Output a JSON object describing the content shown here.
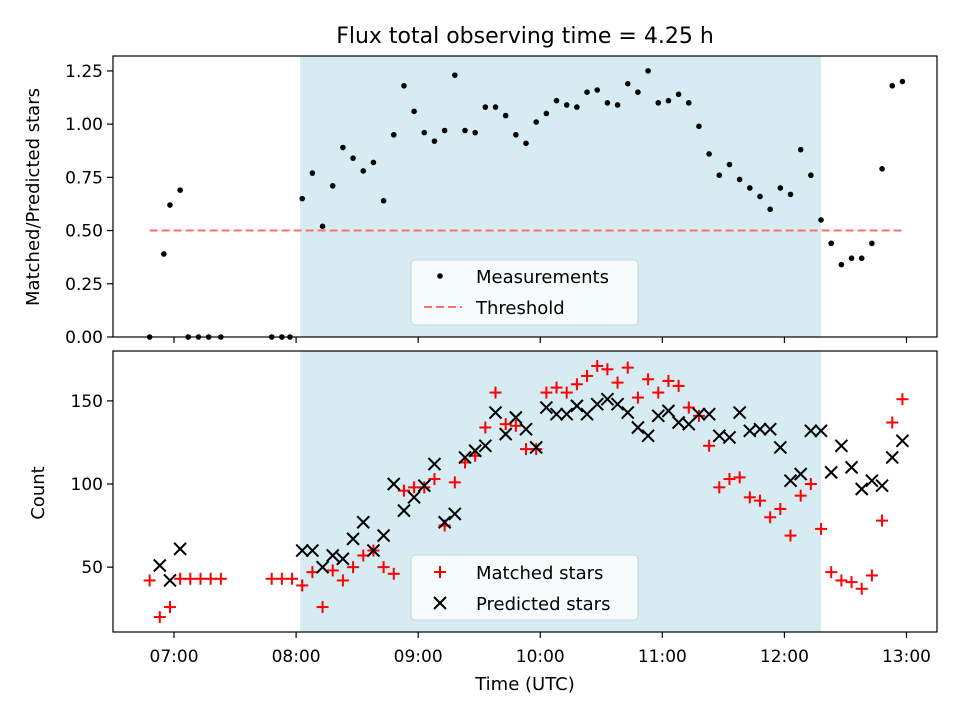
{
  "chart_data": [
    {
      "type": "scatter",
      "title": "Flux total observing time = 4.25 h",
      "xlabel": "",
      "ylabel": "Matched/Predicted stars",
      "xlim": [
        "06:30",
        "13:15"
      ],
      "ylim": [
        0,
        1.32
      ],
      "yticks": [
        "0.00",
        "0.25",
        "0.50",
        "0.75",
        "1.00",
        "1.25"
      ],
      "shaded_span": [
        "08:02",
        "12:18"
      ],
      "shaded_color": "#add8e6",
      "legend": {
        "placement": "lower center",
        "entries": [
          "Measurements",
          "Threshold"
        ]
      },
      "series": [
        {
          "name": "Measurements",
          "marker": "dot",
          "color": "#000000",
          "points": [
            [
              "06:48",
              0.0
            ],
            [
              "06:55",
              0.39
            ],
            [
              "06:58",
              0.62
            ],
            [
              "07:03",
              0.69
            ],
            [
              "07:07",
              0.0
            ],
            [
              "07:12",
              0.0
            ],
            [
              "07:17",
              0.0
            ],
            [
              "07:23",
              0.0
            ],
            [
              "07:48",
              0.0
            ],
            [
              "07:53",
              0.0
            ],
            [
              "07:57",
              0.0
            ],
            [
              "08:03",
              0.65
            ],
            [
              "08:08",
              0.77
            ],
            [
              "08:13",
              0.52
            ],
            [
              "08:18",
              0.71
            ],
            [
              "08:23",
              0.89
            ],
            [
              "08:28",
              0.84
            ],
            [
              "08:33",
              0.78
            ],
            [
              "08:38",
              0.82
            ],
            [
              "08:43",
              0.64
            ],
            [
              "08:48",
              0.95
            ],
            [
              "08:53",
              1.18
            ],
            [
              "08:58",
              1.06
            ],
            [
              "09:03",
              0.96
            ],
            [
              "09:08",
              0.92
            ],
            [
              "09:13",
              0.97
            ],
            [
              "09:18",
              1.23
            ],
            [
              "09:23",
              0.97
            ],
            [
              "09:28",
              0.96
            ],
            [
              "09:33",
              1.08
            ],
            [
              "09:38",
              1.08
            ],
            [
              "09:43",
              1.04
            ],
            [
              "09:48",
              0.95
            ],
            [
              "09:53",
              0.91
            ],
            [
              "09:58",
              1.01
            ],
            [
              "10:03",
              1.05
            ],
            [
              "10:08",
              1.11
            ],
            [
              "10:13",
              1.09
            ],
            [
              "10:18",
              1.08
            ],
            [
              "10:23",
              1.15
            ],
            [
              "10:28",
              1.16
            ],
            [
              "10:33",
              1.1
            ],
            [
              "10:38",
              1.09
            ],
            [
              "10:43",
              1.19
            ],
            [
              "10:48",
              1.15
            ],
            [
              "10:53",
              1.25
            ],
            [
              "10:58",
              1.1
            ],
            [
              "11:03",
              1.11
            ],
            [
              "11:08",
              1.14
            ],
            [
              "11:13",
              1.1
            ],
            [
              "11:18",
              0.99
            ],
            [
              "11:23",
              0.86
            ],
            [
              "11:28",
              0.76
            ],
            [
              "11:33",
              0.81
            ],
            [
              "11:38",
              0.74
            ],
            [
              "11:43",
              0.7
            ],
            [
              "11:48",
              0.66
            ],
            [
              "11:53",
              0.6
            ],
            [
              "11:58",
              0.7
            ],
            [
              "12:03",
              0.67
            ],
            [
              "12:08",
              0.88
            ],
            [
              "12:13",
              0.76
            ],
            [
              "12:18",
              0.55
            ],
            [
              "12:23",
              0.44
            ],
            [
              "12:28",
              0.34
            ],
            [
              "12:33",
              0.37
            ],
            [
              "12:38",
              0.37
            ],
            [
              "12:43",
              0.44
            ],
            [
              "12:48",
              0.79
            ],
            [
              "12:53",
              1.18
            ],
            [
              "12:58",
              1.2
            ]
          ]
        },
        {
          "name": "Threshold",
          "marker": "dashed-line",
          "color": "#ff6f6f",
          "points": [
            [
              "06:48",
              0.5
            ],
            [
              "12:58",
              0.5
            ]
          ]
        }
      ]
    },
    {
      "type": "scatter",
      "title": "",
      "xlabel": "Time (UTC)",
      "ylabel": "Count",
      "xlim": [
        "06:30",
        "13:15"
      ],
      "ylim": [
        11,
        180
      ],
      "xticks": [
        "07:00",
        "08:00",
        "09:00",
        "10:00",
        "11:00",
        "12:00",
        "13:00"
      ],
      "yticks": [
        "50",
        "100",
        "150"
      ],
      "shaded_span": [
        "08:02",
        "12:18"
      ],
      "shaded_color": "#add8e6",
      "legend": {
        "placement": "lower center",
        "entries": [
          "Matched stars",
          "Predicted stars"
        ]
      },
      "series": [
        {
          "name": "Matched stars",
          "marker": "plus",
          "color": "#ff0000",
          "points": [
            [
              "06:48",
              42
            ],
            [
              "06:53",
              20
            ],
            [
              "06:58",
              26
            ],
            [
              "07:03",
              43
            ],
            [
              "07:08",
              43
            ],
            [
              "07:13",
              43
            ],
            [
              "07:18",
              43
            ],
            [
              "07:23",
              43
            ],
            [
              "07:48",
              43
            ],
            [
              "07:53",
              43
            ],
            [
              "07:58",
              43
            ],
            [
              "08:03",
              39
            ],
            [
              "08:08",
              47
            ],
            [
              "08:13",
              26
            ],
            [
              "08:18",
              48
            ],
            [
              "08:23",
              42
            ],
            [
              "08:28",
              50
            ],
            [
              "08:33",
              57
            ],
            [
              "08:38",
              60
            ],
            [
              "08:43",
              50
            ],
            [
              "08:48",
              46
            ],
            [
              "08:53",
              96
            ],
            [
              "08:58",
              98
            ],
            [
              "09:03",
              98
            ],
            [
              "09:08",
              103
            ],
            [
              "09:13",
              75
            ],
            [
              "09:18",
              101
            ],
            [
              "09:23",
              113
            ],
            [
              "09:28",
              117
            ],
            [
              "09:33",
              134
            ],
            [
              "09:38",
              155
            ],
            [
              "09:43",
              136
            ],
            [
              "09:48",
              135
            ],
            [
              "09:53",
              121
            ],
            [
              "09:58",
              121
            ],
            [
              "10:03",
              155
            ],
            [
              "10:08",
              158
            ],
            [
              "10:13",
              155
            ],
            [
              "10:18",
              160
            ],
            [
              "10:23",
              165
            ],
            [
              "10:28",
              171
            ],
            [
              "10:33",
              169
            ],
            [
              "10:38",
              161
            ],
            [
              "10:43",
              170
            ],
            [
              "10:48",
              152
            ],
            [
              "10:53",
              163
            ],
            [
              "10:58",
              155
            ],
            [
              "11:03",
              162
            ],
            [
              "11:08",
              159
            ],
            [
              "11:13",
              146
            ],
            [
              "11:18",
              141
            ],
            [
              "11:23",
              123
            ],
            [
              "11:28",
              98
            ],
            [
              "11:33",
              103
            ],
            [
              "11:38",
              104
            ],
            [
              "11:43",
              92
            ],
            [
              "11:48",
              90
            ],
            [
              "11:53",
              80
            ],
            [
              "11:58",
              85
            ],
            [
              "12:03",
              69
            ],
            [
              "12:08",
              93
            ],
            [
              "12:13",
              100
            ],
            [
              "12:18",
              73
            ],
            [
              "12:23",
              47
            ],
            [
              "12:28",
              42
            ],
            [
              "12:33",
              41
            ],
            [
              "12:38",
              37
            ],
            [
              "12:43",
              45
            ],
            [
              "12:48",
              78
            ],
            [
              "12:53",
              137
            ],
            [
              "12:58",
              151
            ]
          ]
        },
        {
          "name": "Predicted stars",
          "marker": "x",
          "color": "#000000",
          "points": [
            [
              "06:53",
              51
            ],
            [
              "06:58",
              42
            ],
            [
              "07:03",
              61
            ],
            [
              "08:03",
              60
            ],
            [
              "08:08",
              60
            ],
            [
              "08:13",
              50
            ],
            [
              "08:18",
              57
            ],
            [
              "08:23",
              55
            ],
            [
              "08:28",
              67
            ],
            [
              "08:33",
              77
            ],
            [
              "08:38",
              60
            ],
            [
              "08:43",
              69
            ],
            [
              "08:48",
              100
            ],
            [
              "08:53",
              84
            ],
            [
              "08:58",
              92
            ],
            [
              "09:03",
              99
            ],
            [
              "09:08",
              112
            ],
            [
              "09:13",
              77
            ],
            [
              "09:18",
              82
            ],
            [
              "09:23",
              116
            ],
            [
              "09:28",
              120
            ],
            [
              "09:33",
              123
            ],
            [
              "09:38",
              143
            ],
            [
              "09:43",
              130
            ],
            [
              "09:48",
              140
            ],
            [
              "09:53",
              133
            ],
            [
              "09:58",
              122
            ],
            [
              "10:03",
              146
            ],
            [
              "10:08",
              142
            ],
            [
              "10:13",
              142
            ],
            [
              "10:18",
              147
            ],
            [
              "10:23",
              142
            ],
            [
              "10:28",
              148
            ],
            [
              "10:33",
              151
            ],
            [
              "10:38",
              148
            ],
            [
              "10:43",
              143
            ],
            [
              "10:48",
              134
            ],
            [
              "10:53",
              129
            ],
            [
              "10:58",
              141
            ],
            [
              "11:03",
              144
            ],
            [
              "11:08",
              137
            ],
            [
              "11:13",
              136
            ],
            [
              "11:18",
              142
            ],
            [
              "11:23",
              142
            ],
            [
              "11:28",
              129
            ],
            [
              "11:33",
              128
            ],
            [
              "11:38",
              143
            ],
            [
              "11:43",
              132
            ],
            [
              "11:48",
              133
            ],
            [
              "11:53",
              133
            ],
            [
              "11:58",
              122
            ],
            [
              "12:03",
              102
            ],
            [
              "12:08",
              106
            ],
            [
              "12:13",
              132
            ],
            [
              "12:18",
              132
            ],
            [
              "12:23",
              107
            ],
            [
              "12:28",
              123
            ],
            [
              "12:33",
              110
            ],
            [
              "12:38",
              97
            ],
            [
              "12:43",
              102
            ],
            [
              "12:48",
              99
            ],
            [
              "12:53",
              116
            ],
            [
              "12:58",
              126
            ]
          ]
        }
      ]
    }
  ]
}
